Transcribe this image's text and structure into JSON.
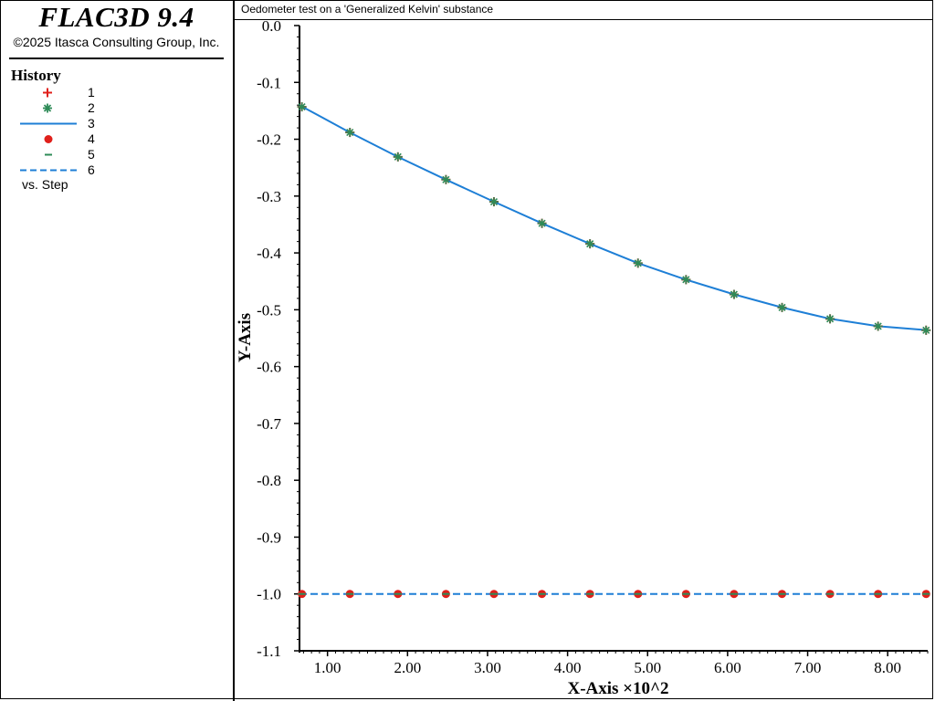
{
  "app": {
    "title": "FLAC3D 9.4",
    "copyright": "©2025 Itasca Consulting Group, Inc."
  },
  "legend": {
    "title": "History",
    "items": [
      {
        "label": "1",
        "symbol": "plus",
        "color": "#e0201b"
      },
      {
        "label": "2",
        "symbol": "star",
        "color": "#2e8b57"
      },
      {
        "label": "3",
        "symbol": "solid-line",
        "color": "#1e7fd6"
      },
      {
        "label": "4",
        "symbol": "dot",
        "color": "#e0201b"
      },
      {
        "label": "5",
        "symbol": "dash",
        "color": "#2e8b57"
      },
      {
        "label": "6",
        "symbol": "dashed-line",
        "color": "#1e7fd6"
      }
    ],
    "vs_label": "vs. Step"
  },
  "plot_title": "Oedometer test on a 'Generalized Kelvin' substance",
  "chart_data": {
    "type": "line",
    "xlabel": "X-Axis ×10^2",
    "ylabel": "Y-Axis",
    "xlim": [
      0.65,
      8.5
    ],
    "ylim": [
      -1.1,
      0.0
    ],
    "xticks": [
      "1.00",
      "2.00",
      "3.00",
      "4.00",
      "5.00",
      "6.00",
      "7.00",
      "8.00"
    ],
    "yticks": [
      "0.0",
      "-0.1",
      "-0.2",
      "-0.3",
      "-0.4",
      "-0.5",
      "-0.6",
      "-0.7",
      "-0.8",
      "-0.9",
      "-1.0",
      "-1.1"
    ],
    "grid": false,
    "legend_position": "left-panel",
    "series": [
      {
        "name": "1",
        "style": "marker",
        "marker": "plus",
        "color": "#e0201b",
        "x": [
          0.68,
          1.28,
          1.88,
          2.48,
          3.08,
          3.68,
          4.28,
          4.88,
          5.48,
          6.08,
          6.68,
          7.28,
          7.88,
          8.48
        ],
        "y": [
          -0.143,
          -0.188,
          -0.231,
          -0.271,
          -0.31,
          -0.348,
          -0.384,
          -0.418,
          -0.447,
          -0.473,
          -0.496,
          -0.516,
          -0.529,
          -0.536
        ]
      },
      {
        "name": "2",
        "style": "marker",
        "marker": "star",
        "color": "#2e8b57",
        "x": [
          0.68,
          1.28,
          1.88,
          2.48,
          3.08,
          3.68,
          4.28,
          4.88,
          5.48,
          6.08,
          6.68,
          7.28,
          7.88,
          8.48
        ],
        "y": [
          -0.143,
          -0.188,
          -0.231,
          -0.271,
          -0.31,
          -0.348,
          -0.384,
          -0.418,
          -0.447,
          -0.473,
          -0.496,
          -0.516,
          -0.529,
          -0.536
        ]
      },
      {
        "name": "3",
        "style": "line",
        "dash": false,
        "color": "#1e7fd6",
        "x": [
          0.65,
          1.28,
          1.88,
          2.48,
          3.08,
          3.68,
          4.28,
          4.88,
          5.48,
          6.08,
          6.68,
          7.28,
          7.88,
          8.5
        ],
        "y": [
          -0.14,
          -0.188,
          -0.231,
          -0.271,
          -0.31,
          -0.348,
          -0.384,
          -0.418,
          -0.447,
          -0.473,
          -0.496,
          -0.516,
          -0.529,
          -0.536
        ]
      },
      {
        "name": "4",
        "style": "marker",
        "marker": "dot",
        "color": "#e0201b",
        "x": [
          0.68,
          1.28,
          1.88,
          2.48,
          3.08,
          3.68,
          4.28,
          4.88,
          5.48,
          6.08,
          6.68,
          7.28,
          7.88,
          8.48
        ],
        "y": [
          -1.0,
          -1.0,
          -1.0,
          -1.0,
          -1.0,
          -1.0,
          -1.0,
          -1.0,
          -1.0,
          -1.0,
          -1.0,
          -1.0,
          -1.0,
          -1.0
        ]
      },
      {
        "name": "5",
        "style": "marker",
        "marker": "dash",
        "color": "#2e8b57",
        "x": [
          0.68,
          1.28,
          1.88,
          2.48,
          3.08,
          3.68,
          4.28,
          4.88,
          5.48,
          6.08,
          6.68,
          7.28,
          7.88,
          8.48
        ],
        "y": [
          -1.0,
          -1.0,
          -1.0,
          -1.0,
          -1.0,
          -1.0,
          -1.0,
          -1.0,
          -1.0,
          -1.0,
          -1.0,
          -1.0,
          -1.0,
          -1.0
        ]
      },
      {
        "name": "6",
        "style": "line",
        "dash": true,
        "color": "#1e7fd6",
        "x": [
          0.65,
          8.5
        ],
        "y": [
          -1.0,
          -1.0
        ]
      }
    ]
  }
}
